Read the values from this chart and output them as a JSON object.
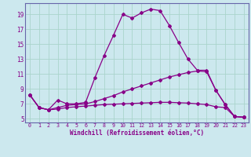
{
  "xlabel": "Windchill (Refroidissement éolien,°C)",
  "background_color": "#cce8ee",
  "grid_color": "#aad4cc",
  "line_color": "#880088",
  "spine_color": "#6666aa",
  "xlim": [
    -0.5,
    23.5
  ],
  "ylim": [
    4.5,
    20.5
  ],
  "yticks": [
    5,
    7,
    9,
    11,
    13,
    15,
    17,
    19
  ],
  "xticks": [
    0,
    1,
    2,
    3,
    4,
    5,
    6,
    7,
    8,
    9,
    10,
    11,
    12,
    13,
    14,
    15,
    16,
    17,
    18,
    19,
    20,
    21,
    22,
    23
  ],
  "line1_x": [
    0,
    1,
    2,
    3,
    4,
    5,
    6,
    7,
    8,
    9,
    10,
    11,
    12,
    13,
    14,
    15,
    16,
    17,
    18,
    19,
    20,
    21,
    22,
    23
  ],
  "line1_y": [
    8.2,
    6.5,
    6.2,
    7.5,
    7.0,
    7.0,
    7.2,
    10.5,
    13.5,
    16.2,
    19.0,
    18.5,
    19.2,
    19.7,
    19.5,
    17.5,
    15.2,
    13.0,
    11.5,
    11.5,
    8.8,
    6.9,
    5.3,
    5.2
  ],
  "line2_x": [
    0,
    1,
    2,
    3,
    4,
    5,
    6,
    7,
    8,
    9,
    10,
    11,
    12,
    13,
    14,
    15,
    16,
    17,
    18,
    19,
    20,
    21,
    22,
    23
  ],
  "line2_y": [
    8.2,
    6.5,
    6.2,
    6.5,
    6.8,
    6.9,
    7.0,
    7.3,
    7.7,
    8.1,
    8.6,
    9.0,
    9.4,
    9.8,
    10.2,
    10.6,
    10.9,
    11.2,
    11.4,
    11.3,
    8.8,
    6.9,
    5.3,
    5.2
  ],
  "line3_x": [
    0,
    1,
    2,
    3,
    4,
    5,
    6,
    7,
    8,
    9,
    10,
    11,
    12,
    13,
    14,
    15,
    16,
    17,
    18,
    19,
    20,
    21,
    22,
    23
  ],
  "line3_y": [
    8.2,
    6.5,
    6.2,
    6.3,
    6.5,
    6.6,
    6.7,
    6.8,
    6.9,
    6.95,
    7.0,
    7.05,
    7.1,
    7.15,
    7.2,
    7.2,
    7.15,
    7.1,
    7.0,
    6.9,
    6.6,
    6.5,
    5.3,
    5.2
  ]
}
